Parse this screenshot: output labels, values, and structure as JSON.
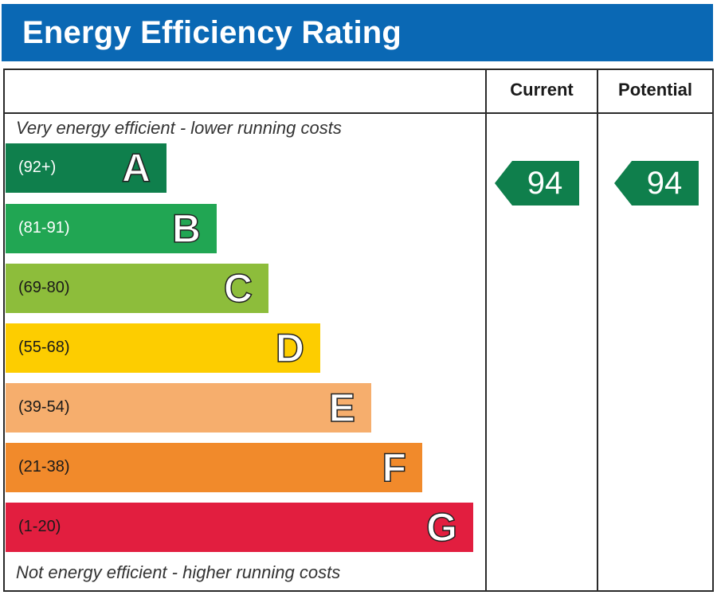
{
  "title": "Energy Efficiency Rating",
  "columns": {
    "current": "Current",
    "potential": "Potential"
  },
  "top_note": "Very energy efficient - lower running costs",
  "bottom_note": "Not energy efficient - higher running costs",
  "colors": {
    "title_bg": "#0a68b4",
    "A": "#0f7f4c",
    "B": "#21a653",
    "C": "#8dbd3b",
    "D": "#fdcd00",
    "E": "#f6ae6d",
    "F": "#f18a2b",
    "G": "#e21e3f"
  },
  "chart_data": {
    "type": "bar",
    "categories": [
      "A",
      "B",
      "C",
      "D",
      "E",
      "F",
      "G"
    ],
    "ranges": [
      "(92+)",
      "(81-91)",
      "(69-80)",
      "(55-68)",
      "(39-54)",
      "(21-38)",
      "(1-20)"
    ],
    "current": 94,
    "potential": 94
  }
}
